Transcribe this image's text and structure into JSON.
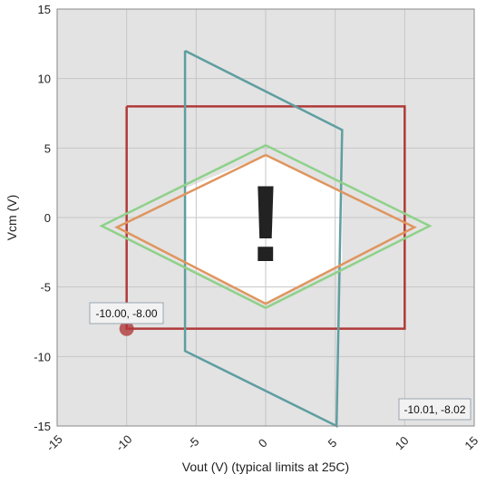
{
  "chart_data": {
    "type": "line",
    "xlabel": "Vout (V) (typical limits at 25C)",
    "ylabel": "Vcm (V)",
    "xlim": [
      -15,
      15
    ],
    "ylim": [
      -15,
      15
    ],
    "xticks": [
      -15,
      -10,
      -5,
      0,
      5,
      10,
      15
    ],
    "yticks": [
      -15,
      -10,
      -5,
      0,
      5,
      10,
      15
    ],
    "x_tick_labels": [
      "-15",
      "-10",
      "-5",
      "0",
      "5",
      "10",
      "15"
    ],
    "y_tick_labels": [
      "-15",
      "-10",
      "-5",
      "0",
      "5",
      "10",
      "15"
    ],
    "grid": true,
    "series": [
      {
        "color": "#b03a3a",
        "points": [
          [
            -10,
            8
          ],
          [
            10,
            8
          ],
          [
            10,
            -8
          ],
          [
            -10,
            -8
          ],
          [
            -10,
            8
          ]
        ]
      },
      {
        "color": "#5f9ea0",
        "points": [
          [
            -5.8,
            12
          ],
          [
            5.5,
            6.3
          ],
          [
            5.1,
            -15
          ],
          [
            -5.8,
            -9.6
          ],
          [
            -5.8,
            12
          ]
        ]
      },
      {
        "color": "#8fd18a",
        "points": [
          [
            0,
            5.2
          ],
          [
            11.8,
            -0.6
          ],
          [
            0,
            -6.5
          ],
          [
            -11.8,
            -0.6
          ],
          [
            0,
            5.2
          ]
        ]
      },
      {
        "color": "#e0955e",
        "points": [
          [
            0,
            4.5
          ],
          [
            10.7,
            -0.7
          ],
          [
            0,
            -6.2
          ],
          [
            -10.7,
            -0.7
          ],
          [
            0,
            4.5
          ]
        ]
      }
    ],
    "safe_region": [
      [
        0,
        4.5
      ],
      [
        5.5,
        1.8
      ],
      [
        5.5,
        -3.5
      ],
      [
        0,
        -6.2
      ],
      [
        -5.8,
        -3.4
      ],
      [
        -5.8,
        2.1
      ]
    ],
    "marker": {
      "x": -10,
      "y": -8,
      "color": "#b03a3a"
    },
    "marker_label": "-10.00, -8.00",
    "cursor_readout": "-10.01, -8.02",
    "warning_glyph": "!",
    "warning_color": "#ef6060",
    "plot_background": "#e3e3e3",
    "safe_fill": "#ffffff",
    "grid_color": "#c6c6c6"
  }
}
